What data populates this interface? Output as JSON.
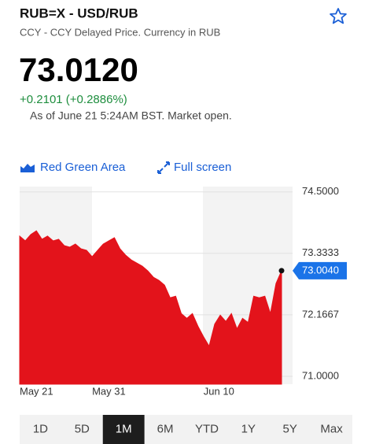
{
  "header": {
    "title": "RUB=X - USD/RUB",
    "subtitle": "CCY - CCY Delayed Price. Currency in RUB"
  },
  "quote": {
    "price": "73.0120",
    "change": "+0.2101 (+0.2886%)",
    "timestamp": "As of June 21 5:24AM BST. Market open."
  },
  "toolbar": {
    "chart_style": "Red Green Area",
    "full_screen": "Full screen"
  },
  "chart_data": {
    "type": "area",
    "categories": [
      "May 21",
      null,
      null,
      null,
      null,
      null,
      null,
      null,
      null,
      null,
      null,
      null,
      null,
      "May 31",
      null,
      null,
      null,
      null,
      null,
      null,
      null,
      null,
      null,
      null,
      null,
      null,
      null,
      null,
      null,
      null,
      null,
      null,
      null,
      "Jun 10",
      null,
      null,
      null,
      null,
      null,
      null,
      null,
      null,
      null,
      null,
      null,
      null,
      null,
      null
    ],
    "values": [
      73.66,
      73.57,
      73.69,
      73.76,
      73.6,
      73.66,
      73.57,
      73.6,
      73.48,
      73.45,
      73.51,
      73.42,
      73.39,
      73.27,
      73.39,
      73.51,
      73.57,
      73.63,
      73.42,
      73.3,
      73.21,
      73.15,
      73.09,
      73.0,
      72.88,
      72.82,
      72.73,
      72.49,
      72.52,
      72.19,
      72.1,
      72.19,
      71.95,
      71.75,
      71.57,
      71.99,
      72.16,
      72.04,
      72.19,
      71.9,
      72.1,
      72.02,
      72.52,
      72.49,
      72.52,
      72.19,
      72.76,
      73.004
    ],
    "color": "#e3131b",
    "ylim": [
      70.85,
      74.6
    ],
    "yticks": [
      {
        "value": 74.5,
        "label": "74.5000"
      },
      73.3333,
      72.1667,
      {
        "value": 71,
        "label": "71.0000"
      }
    ],
    "grid": true,
    "last_value": {
      "value": 73.004,
      "label": "73.0040"
    }
  },
  "ranges": {
    "options": [
      "1D",
      "5D",
      "1M",
      "6M",
      "YTD",
      "1Y",
      "5Y",
      "Max"
    ],
    "selected": "1M"
  }
}
